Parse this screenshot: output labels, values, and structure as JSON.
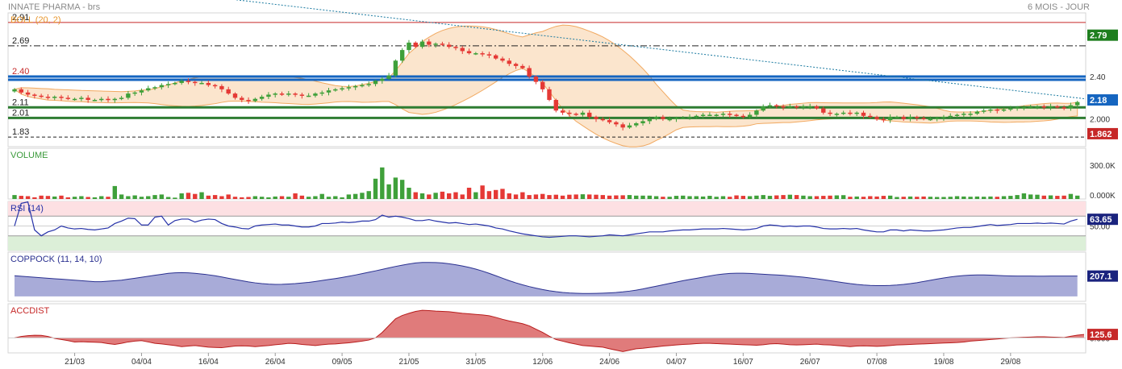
{
  "header": {
    "instrument": "INNATE PHARMA - brs",
    "period": "6 MOIS - JOUR"
  },
  "chart_data": [
    {
      "type": "candlestick",
      "panel": "price",
      "overlay_label": "BOLL (20, 2)",
      "y_axis_ticks": [
        "2.40",
        "2.000"
      ],
      "ylim": [
        1.74,
        3.0
      ],
      "grid": true,
      "horizontal_lines": [
        {
          "label": "2.91",
          "value": 2.91,
          "color": "#c62828",
          "style": "solid"
        },
        {
          "label": "2.69",
          "value": 2.69,
          "color": "#222222",
          "style": "dashdot"
        },
        {
          "label": "2.40",
          "value": 2.4,
          "color": "#1565c0",
          "style": "thick",
          "label_color": "#c62828"
        },
        {
          "label": "2.11",
          "value": 2.11,
          "color": "#2e7d32",
          "style": "thick"
        },
        {
          "label": "2.01",
          "value": 2.01,
          "color": "#2e7d32",
          "style": "thick"
        },
        {
          "label": "1.83",
          "value": 1.83,
          "color": "#222222",
          "style": "dashed"
        }
      ],
      "trendline": {
        "start": 3.25,
        "end": 2.19,
        "color": "#1a7aa0",
        "style": "dotted"
      },
      "close": [
        2.28,
        2.25,
        2.23,
        2.22,
        2.21,
        2.2,
        2.21,
        2.2,
        2.19,
        2.19,
        2.2,
        2.18,
        2.18,
        2.19,
        2.18,
        2.19,
        2.2,
        2.24,
        2.25,
        2.27,
        2.29,
        2.3,
        2.32,
        2.33,
        2.34,
        2.36,
        2.35,
        2.34,
        2.34,
        2.32,
        2.31,
        2.28,
        2.24,
        2.2,
        2.18,
        2.17,
        2.19,
        2.21,
        2.23,
        2.24,
        2.23,
        2.24,
        2.23,
        2.22,
        2.22,
        2.24,
        2.25,
        2.27,
        2.28,
        2.29,
        2.3,
        2.31,
        2.32,
        2.33,
        2.36,
        2.38,
        2.41,
        2.55,
        2.65,
        2.72,
        2.68,
        2.73,
        2.7,
        2.71,
        2.7,
        2.68,
        2.67,
        2.64,
        2.62,
        2.62,
        2.61,
        2.6,
        2.57,
        2.55,
        2.52,
        2.5,
        2.48,
        2.4,
        2.35,
        2.28,
        2.18,
        2.08,
        2.06,
        2.05,
        2.04,
        2.06,
        2.02,
        2.0,
        1.99,
        1.97,
        1.95,
        1.92,
        1.94,
        1.96,
        1.98,
        2.0,
        2.02,
        2.0,
        2.0,
        2.01,
        2.01,
        2.02,
        2.03,
        2.04,
        2.04,
        2.04,
        2.05,
        2.04,
        2.03,
        2.02,
        2.04,
        2.08,
        2.12,
        2.13,
        2.12,
        2.11,
        2.12,
        2.11,
        2.12,
        2.12,
        2.1,
        2.06,
        2.05,
        2.05,
        2.06,
        2.05,
        2.06,
        2.03,
        2.02,
        2.0,
        1.99,
        2.02,
        2.02,
        2.0,
        2.02,
        2.01,
        2.0,
        2.0,
        2.01,
        2.02,
        2.03,
        2.04,
        2.05,
        2.05,
        2.07,
        2.08,
        2.09,
        2.08,
        2.09,
        2.1,
        2.11,
        2.11,
        2.11,
        2.12,
        2.11,
        2.12,
        2.11,
        2.1,
        2.13,
        2.16
      ],
      "badges": [
        {
          "label": "2.79",
          "value": 2.79,
          "color": "#1e7e1e"
        },
        {
          "label": "2.18",
          "value": 2.18,
          "color": "#1565c0"
        },
        {
          "label": "1.862",
          "value": 1.862,
          "color": "#c62828"
        }
      ]
    },
    {
      "type": "bar",
      "panel": "volume",
      "label": "VOLUME",
      "y_axis_ticks": [
        "300.0K",
        "0.000K"
      ],
      "ylim": [
        0,
        450000
      ],
      "values": [
        35,
        28,
        25,
        15,
        30,
        27,
        22,
        30,
        15,
        20,
        25,
        18,
        15,
        25,
        20,
        115,
        40,
        25,
        32,
        20,
        25,
        35,
        40,
        18,
        12,
        50,
        55,
        45,
        60,
        30,
        35,
        25,
        40,
        20,
        15,
        18,
        25,
        20,
        15,
        22,
        25,
        20,
        50,
        30,
        20,
        25,
        45,
        20,
        25,
        15,
        40,
        45,
        55,
        70,
        180,
        280,
        130,
        190,
        170,
        100,
        60,
        50,
        40,
        55,
        65,
        50,
        60,
        40,
        100,
        60,
        120,
        70,
        80,
        90,
        50,
        40,
        60,
        35,
        40,
        45,
        35,
        38,
        30,
        38,
        40,
        42,
        40,
        38,
        35,
        30,
        32,
        33,
        35,
        30,
        30,
        30,
        25,
        20,
        20,
        28,
        30,
        25,
        25,
        22,
        28,
        20,
        25,
        20,
        32,
        28,
        25,
        30,
        35,
        28,
        32,
        35,
        38,
        35,
        30,
        25,
        25,
        28,
        30,
        32,
        34,
        20,
        22,
        20,
        25,
        22,
        28,
        30,
        18,
        20,
        22,
        20,
        22,
        20,
        18,
        18,
        20,
        25,
        22,
        20,
        22,
        20,
        22,
        20,
        25,
        28,
        35,
        50,
        40,
        38,
        30,
        32,
        28,
        30,
        45,
        30
      ],
      "colors": "green when close >= previous close, red otherwise"
    },
    {
      "type": "line",
      "panel": "rsi",
      "label": "RSI (14)",
      "y_axis_ticks": [
        "50.00"
      ],
      "badge": {
        "label": "63.65",
        "value": 63.65,
        "color": "#1a237e"
      },
      "ylim": [
        0,
        100
      ],
      "bands": {
        "overbought": 70,
        "oversold": 30
      },
      "values": [
        50,
        96,
        99,
        42,
        30,
        38,
        42,
        50,
        46,
        44,
        45,
        43,
        42,
        44,
        46,
        55,
        60,
        66,
        65,
        52,
        52,
        68,
        70,
        52,
        61,
        64,
        64,
        58,
        62,
        64,
        63,
        55,
        50,
        48,
        45,
        44,
        50,
        52,
        53,
        54,
        52,
        52,
        50,
        48,
        48,
        50,
        55,
        55,
        56,
        58,
        57,
        58,
        60,
        60,
        63,
        72,
        68,
        70,
        68,
        65,
        61,
        61,
        63,
        60,
        58,
        56,
        57,
        55,
        53,
        54,
        52,
        50,
        46,
        44,
        40,
        37,
        34,
        32,
        30,
        28,
        27,
        28,
        29,
        30,
        30,
        29,
        28,
        29,
        30,
        32,
        31,
        30,
        32,
        34,
        36,
        38,
        38,
        38,
        40,
        41,
        42,
        42,
        43,
        44,
        44,
        44,
        45,
        44,
        43,
        42,
        43,
        45,
        50,
        52,
        51,
        49,
        50,
        49,
        50,
        50,
        48,
        45,
        44,
        44,
        45,
        44,
        45,
        42,
        40,
        38,
        38,
        42,
        42,
        40,
        42,
        41,
        40,
        40,
        41,
        42,
        44,
        46,
        47,
        47,
        49,
        51,
        53,
        51,
        52,
        53,
        55,
        55,
        55,
        56,
        55,
        56,
        55,
        54,
        60,
        63.65
      ]
    },
    {
      "type": "area",
      "panel": "coppock",
      "label": "COPPOCK (11, 14, 10)",
      "badge": {
        "label": "207.1",
        "value": 207.1,
        "color": "#1a237e"
      },
      "ylim": [
        -50,
        450
      ],
      "values": [
        210,
        205,
        200,
        195,
        190,
        185,
        180,
        175,
        170,
        165,
        160,
        155,
        150,
        150,
        155,
        160,
        165,
        175,
        185,
        195,
        205,
        215,
        225,
        235,
        240,
        242,
        240,
        235,
        228,
        220,
        210,
        198,
        185,
        172,
        160,
        148,
        138,
        130,
        125,
        122,
        123,
        126,
        130,
        136,
        143,
        152,
        162,
        172,
        182,
        193,
        205,
        218,
        232,
        246,
        260,
        275,
        290,
        305,
        318,
        330,
        340,
        345,
        346,
        344,
        340,
        332,
        322,
        310,
        295,
        278,
        258,
        235,
        210,
        185,
        160,
        138,
        118,
        100,
        84,
        70,
        58,
        48,
        40,
        35,
        32,
        30,
        30,
        31,
        33,
        36,
        40,
        46,
        54,
        64,
        76,
        90,
        104,
        118,
        132,
        146,
        160,
        172,
        184,
        196,
        208,
        220,
        228,
        234,
        236,
        236,
        234,
        230,
        226,
        222,
        218,
        214,
        208,
        202,
        196,
        188,
        180,
        170,
        160,
        150,
        140,
        130,
        122,
        116,
        112,
        110,
        110,
        112,
        116,
        122,
        130,
        140,
        152,
        164,
        176,
        188,
        198,
        206,
        212,
        216,
        218,
        218,
        216,
        213,
        210,
        208,
        207,
        207,
        207,
        206,
        206,
        207,
        207.1,
        207.1,
        207.1,
        207.1
      ]
    },
    {
      "type": "area",
      "panel": "accdist",
      "label": "ACCDIST",
      "y_axis_ticks": [
        "0.000"
      ],
      "badge": {
        "label": "125.6",
        "value": 125.6,
        "color": "#c62828"
      },
      "ylim": [
        -550,
        1250
      ],
      "values": [
        0,
        50,
        80,
        95,
        90,
        50,
        -20,
        -60,
        -100,
        -150,
        -140,
        -150,
        -160,
        -170,
        -210,
        -240,
        -200,
        -150,
        -120,
        -100,
        -150,
        -200,
        -220,
        -250,
        -280,
        -320,
        -300,
        -280,
        -310,
        -340,
        -350,
        -360,
        -330,
        -300,
        -290,
        -300,
        -320,
        -300,
        -280,
        -250,
        -230,
        -200,
        -210,
        -240,
        -260,
        -280,
        -250,
        -230,
        -220,
        -200,
        -180,
        -150,
        -120,
        -80,
        0,
        200,
        450,
        700,
        820,
        900,
        970,
        1010,
        1000,
        980,
        970,
        960,
        930,
        900,
        880,
        860,
        840,
        810,
        750,
        680,
        620,
        570,
        520,
        440,
        320,
        200,
        60,
        -60,
        -120,
        -180,
        -230,
        -280,
        -300,
        -320,
        -340,
        -400,
        -450,
        -500,
        -450,
        -400,
        -380,
        -350,
        -330,
        -300,
        -280,
        -260,
        -240,
        -230,
        -210,
        -200,
        -200,
        -210,
        -220,
        -230,
        -240,
        -250,
        -260,
        -270,
        -250,
        -220,
        -210,
        -230,
        -250,
        -260,
        -250,
        -240,
        -230,
        -250,
        -260,
        -280,
        -300,
        -320,
        -300,
        -290,
        -300,
        -310,
        -300,
        -280,
        -260,
        -250,
        -240,
        -230,
        -220,
        -210,
        -200,
        -190,
        -180,
        -170,
        -150,
        -120,
        -100,
        -80,
        -60,
        -40,
        -20,
        0,
        10,
        20,
        30,
        40,
        40,
        30,
        20,
        10,
        60,
        100,
        125.6
      ]
    },
    {
      "type": "time_axis",
      "x_tick_labels": [
        "21/03",
        "04/04",
        "16/04",
        "26/04",
        "09/05",
        "21/05",
        "31/05",
        "12/06",
        "24/06",
        "04/07",
        "16/07",
        "26/07",
        "07/08",
        "19/08",
        "29/08"
      ],
      "x_tick_index": [
        9,
        19,
        29,
        39,
        49,
        59,
        69,
        79,
        89,
        99,
        109,
        119,
        129,
        139,
        149
      ]
    }
  ],
  "theme": {
    "up": "#3fa03a",
    "down": "#e53935",
    "band_fill": "#fbe3c8",
    "band_stroke": "#f0a050",
    "rsi_line": "#2632a8",
    "rsi_upper_fill": "#fde0e3",
    "rsi_lower_fill": "#dcefd8",
    "coppock_fill": "#a8abd8",
    "coppock_line": "#2a3090",
    "accdist_fill": "#e07b7b",
    "accdist_line": "#b71c1c",
    "boll_label": "#e8952b",
    "volume_label": "#3a9a3a",
    "rsi_label": "#2632a8",
    "coppock_label": "#2a3090",
    "accdist_label": "#c62828"
  }
}
